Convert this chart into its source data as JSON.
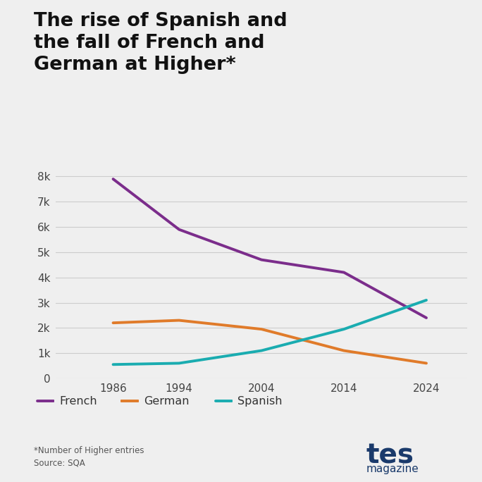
{
  "title": "The rise of Spanish and\nthe fall of French and\nGerman at Higher*",
  "background_color": "#efefef",
  "years": [
    1986,
    1994,
    2004,
    2014,
    2024
  ],
  "french": [
    7900,
    5900,
    4700,
    4200,
    2400
  ],
  "german": [
    2200,
    2300,
    1950,
    1100,
    600
  ],
  "spanish": [
    550,
    600,
    1100,
    1950,
    3100
  ],
  "french_color": "#7B2D8B",
  "german_color": "#E07B2A",
  "spanish_color": "#1AACB0",
  "line_width": 2.8,
  "footnote": "*Number of Higher entries\nSource: SQA",
  "ylim": [
    0,
    8500
  ],
  "yticks": [
    0,
    1000,
    2000,
    3000,
    4000,
    5000,
    6000,
    7000,
    8000
  ],
  "ytick_labels": [
    "0",
    "1k",
    "2k",
    "3k",
    "4k",
    "5k",
    "6k",
    "7k",
    "8k"
  ],
  "xticks": [
    1986,
    1994,
    2004,
    2014,
    2024
  ],
  "tes_color": "#1a3a6b",
  "xlim_left": 1979,
  "xlim_right": 2029
}
